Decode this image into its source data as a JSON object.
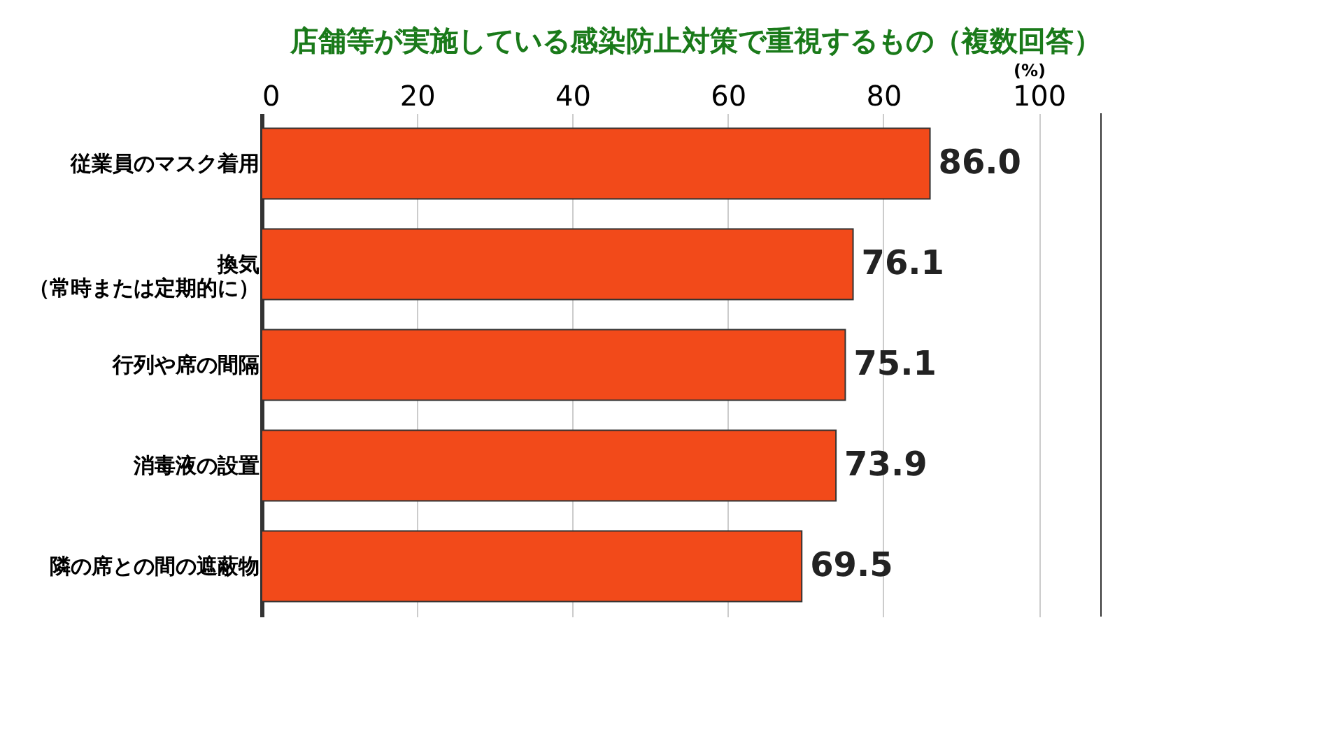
{
  "chart_data": {
    "type": "bar",
    "orientation": "horizontal",
    "title": "店舗等が実施している感染防止対策で重視するもの（複数回答）",
    "categories": [
      "従業員のマスク着用",
      "換気（常時または定期的に）",
      "行列や席の間隔",
      "消毒液の設置",
      "隣の席との間の遮蔽物"
    ],
    "values": [
      86.0,
      76.1,
      75.1,
      73.9,
      69.5
    ],
    "color": "#f24a1a",
    "xlim": [
      0,
      108
    ],
    "xticks": [
      0,
      20,
      40,
      60,
      80,
      100
    ],
    "xlabel": "(%)",
    "grid": "x",
    "value_labels": [
      "86.0",
      "76.1",
      "75.1",
      "73.9",
      "69.5"
    ]
  }
}
